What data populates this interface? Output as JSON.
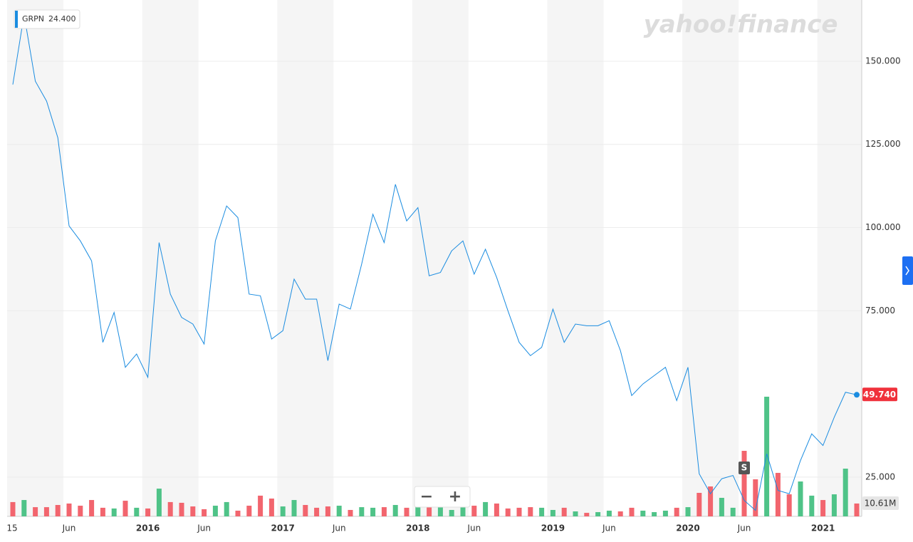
{
  "chart_data": {
    "type": "line",
    "brand": "yahoo!finance",
    "legend_value": {
      "name": "GRPN",
      "value": 24.4,
      "label": "24.400"
    },
    "categories": [
      "15",
      null,
      null,
      null,
      null,
      "Jun",
      null,
      null,
      null,
      null,
      null,
      null,
      "2016",
      null,
      null,
      null,
      null,
      "Jun",
      null,
      null,
      null,
      null,
      null,
      null,
      "2017",
      null,
      null,
      null,
      null,
      "Jun",
      null,
      null,
      null,
      null,
      null,
      null,
      "2018",
      null,
      null,
      null,
      null,
      "Jun",
      null,
      null,
      null,
      null,
      null,
      null,
      "2019",
      null,
      null,
      null,
      null,
      "Jun",
      null,
      null,
      null,
      null,
      null,
      null,
      "2020",
      null,
      null,
      null,
      null,
      "Jun",
      null,
      null,
      null,
      null,
      null,
      null,
      "2021",
      null,
      null,
      null
    ],
    "series": [
      {
        "name": "GRPN",
        "color": "#1a8ce0",
        "values": [
          143,
          164,
          144,
          138,
          127,
          100.5,
          96,
          90,
          65.5,
          74.5,
          58,
          62,
          55,
          95.5,
          80,
          73,
          71,
          65,
          96,
          106.5,
          103,
          80,
          79.5,
          66.5,
          69,
          84.5,
          78.5,
          78.5,
          60,
          77,
          75.5,
          89,
          104,
          95.5,
          113,
          102,
          106,
          85.5,
          86.5,
          93,
          96,
          86,
          93.5,
          85,
          75,
          65.5,
          61.5,
          64,
          75.5,
          65.5,
          71,
          70.5,
          70.5,
          72,
          63,
          49.5,
          53,
          55.5,
          58,
          48,
          58,
          26,
          20,
          24.5,
          25.5,
          18,
          15,
          32,
          21,
          20,
          30,
          38,
          34.5,
          43,
          50.5,
          49.74
        ]
      }
    ],
    "last_price": {
      "value": 49.74,
      "label": "49.740",
      "color": "#f0313b"
    },
    "volume": {
      "values": [
        11.8,
        13.5,
        7.6,
        7.6,
        9.4,
        10.6,
        8.8,
        13.5,
        7.1,
        6.5,
        12.9,
        7.1,
        6.5,
        22.9,
        11.8,
        11.2,
        8.2,
        5.9,
        8.8,
        11.8,
        4.7,
        8.8,
        17.1,
        14.7,
        8.2,
        13.5,
        9.4,
        7.1,
        8.2,
        8.8,
        5.3,
        7.6,
        7.1,
        7.6,
        9.4,
        7.1,
        7.6,
        11.2,
        7.6,
        5.3,
        7.6,
        8.8,
        11.8,
        10.6,
        6.5,
        7.1,
        7.6,
        7.1,
        5.3,
        7.1,
        4.1,
        2.9,
        3.5,
        4.7,
        4.1,
        7.1,
        4.7,
        3.5,
        4.7,
        7.1,
        7.6,
        19.4,
        24.7,
        15.3,
        7.1,
        54.1,
        30.6,
        98.8,
        35.9,
        18.2,
        28.8,
        17.1,
        13.5,
        18.2,
        39.4,
        10.61
      ],
      "colors": [
        "r",
        "g",
        "r",
        "r",
        "r",
        "r",
        "r",
        "r",
        "r",
        "g",
        "r",
        "g",
        "r",
        "g",
        "r",
        "r",
        "r",
        "r",
        "g",
        "g",
        "r",
        "r",
        "r",
        "r",
        "g",
        "g",
        "r",
        "r",
        "r",
        "g",
        "r",
        "g",
        "g",
        "r",
        "g",
        "r",
        "g",
        "r",
        "g",
        "g",
        "g",
        "r",
        "g",
        "r",
        "r",
        "r",
        "r",
        "g",
        "g",
        "r",
        "g",
        "r",
        "g",
        "g",
        "r",
        "r",
        "g",
        "g",
        "g",
        "r",
        "g",
        "r",
        "r",
        "g",
        "g",
        "r",
        "r",
        "g",
        "r",
        "r",
        "g",
        "g",
        "r",
        "g",
        "g",
        "r"
      ],
      "up_color": "#4fc388",
      "down_color": "#f2656e",
      "last": {
        "value": 10.61,
        "label": "10.61M"
      }
    },
    "annotation": {
      "index": 65,
      "label": "S"
    },
    "zoom_buttons": [
      "−",
      "+"
    ],
    "ylim": [
      13.2,
      168.4
    ],
    "yticks": [
      {
        "value": 25,
        "label": "25.000"
      },
      {
        "value": 75,
        "label": "75.000"
      },
      {
        "value": 100,
        "label": "100.000"
      },
      {
        "value": 125,
        "label": "125.000"
      },
      {
        "value": 150,
        "label": "150.000"
      }
    ],
    "grid": true
  }
}
